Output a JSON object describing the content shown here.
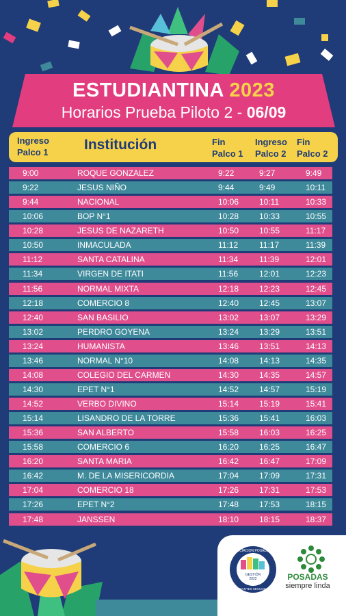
{
  "title": {
    "main": "ESTUDIANTINA",
    "year": "2023",
    "subtitle": "Horarios Prueba Piloto 2 - ",
    "date": "06/09"
  },
  "header": {
    "ingreso1_a": "Ingreso",
    "ingreso1_b": "Palco 1",
    "institucion": "Institución",
    "fin1_a": "Fin",
    "fin1_b": "Palco 1",
    "ingreso2_a": "Ingreso",
    "ingreso2_b": "Palco 2",
    "fin2_a": "Fin",
    "fin2_b": "Palco 2"
  },
  "rows": [
    {
      "i1": "9:00",
      "inst": "ROQUE GONZALEZ",
      "f1": "9:22",
      "i2": "9:27",
      "f2": "9:49"
    },
    {
      "i1": "9:22",
      "inst": "JESUS NIÑO",
      "f1": "9:44",
      "i2": "9:49",
      "f2": "10:11"
    },
    {
      "i1": "9:44",
      "inst": "NACIONAL",
      "f1": "10:06",
      "i2": "10:11",
      "f2": "10:33"
    },
    {
      "i1": "10:06",
      "inst": "BOP N°1",
      "f1": "10:28",
      "i2": "10:33",
      "f2": "10:55"
    },
    {
      "i1": "10:28",
      "inst": "JESUS DE NAZARETH",
      "f1": "10:50",
      "i2": "10:55",
      "f2": "11:17"
    },
    {
      "i1": "10:50",
      "inst": "INMACULADA",
      "f1": "11:12",
      "i2": "11:17",
      "f2": "11:39"
    },
    {
      "i1": "11:12",
      "inst": "SANTA CATALINA",
      "f1": "11:34",
      "i2": "11:39",
      "f2": "12:01"
    },
    {
      "i1": "11:34",
      "inst": "VIRGEN DE ITATI",
      "f1": "11:56",
      "i2": "12:01",
      "f2": "12:23"
    },
    {
      "i1": "11:56",
      "inst": "NORMAL MIXTA",
      "f1": "12:18",
      "i2": "12:23",
      "f2": "12:45"
    },
    {
      "i1": "12:18",
      "inst": "COMERCIO  8",
      "f1": "12:40",
      "i2": "12:45",
      "f2": "13:07"
    },
    {
      "i1": "12:40",
      "inst": "SAN BASILIO",
      "f1": "13:02",
      "i2": "13:07",
      "f2": "13:29"
    },
    {
      "i1": "13:02",
      "inst": "PERDRO GOYENA",
      "f1": "13:24",
      "i2": "13:29",
      "f2": "13:51"
    },
    {
      "i1": "13:24",
      "inst": "HUMANISTA",
      "f1": "13:46",
      "i2": "13:51",
      "f2": "14:13"
    },
    {
      "i1": "13:46",
      "inst": "NORMAL N°10",
      "f1": "14:08",
      "i2": "14:13",
      "f2": "14:35"
    },
    {
      "i1": "14:08",
      "inst": "COLEGIO DEL CARMEN",
      "f1": "14:30",
      "i2": "14:35",
      "f2": "14:57"
    },
    {
      "i1": "14:30",
      "inst": "EPET N°1",
      "f1": "14:52",
      "i2": "14:57",
      "f2": "15:19"
    },
    {
      "i1": "14:52",
      "inst": "VERBO DIVINO",
      "f1": "15:14",
      "i2": "15:19",
      "f2": "15:41"
    },
    {
      "i1": "15:14",
      "inst": "LISANDRO DE LA TORRE",
      "f1": "15:36",
      "i2": "15:41",
      "f2": "16:03"
    },
    {
      "i1": "15:36",
      "inst": "SAN ALBERTO",
      "f1": "15:58",
      "i2": "16:03",
      "f2": "16:25"
    },
    {
      "i1": "15:58",
      "inst": "COMERCIO  6",
      "f1": "16:20",
      "i2": "16:25",
      "f2": "16:47"
    },
    {
      "i1": "16:20",
      "inst": "SANTA MARIA",
      "f1": "16:42",
      "i2": "16:47",
      "f2": "17:09"
    },
    {
      "i1": "16:42",
      "inst": "M. DE LA MISERICORDIA",
      "f1": "17:04",
      "i2": "17:09",
      "f2": "17:31"
    },
    {
      "i1": "17:04",
      "inst": "COMERCIO 18",
      "f1": "17:26",
      "i2": "17:31",
      "f2": "17:53"
    },
    {
      "i1": "17:26",
      "inst": "EPET N°2",
      "f1": "17:48",
      "i2": "17:53",
      "f2": "18:15"
    },
    {
      "i1": "17:48",
      "inst": "JANSSEN",
      "f1": "18:10",
      "i2": "18:15",
      "f2": "18:37"
    }
  ],
  "footer": {
    "logo_text": [
      "ASOCIACION POSADEÑA",
      "GESTIÓN",
      "2022",
      "ESTUDIANTES SECUNDARIOS"
    ],
    "brand": "POSADAS",
    "tagline": "siempre linda"
  },
  "colors": {
    "background": "#1f3b78",
    "pink": "#e04f8c",
    "teal": "#3e8a9b",
    "yellow": "#f6d24a",
    "banner": "#e23d7e"
  },
  "icons": [
    "drum-icon",
    "leaf-decoration",
    "asociacion-logo",
    "posadas-flower-icon"
  ]
}
